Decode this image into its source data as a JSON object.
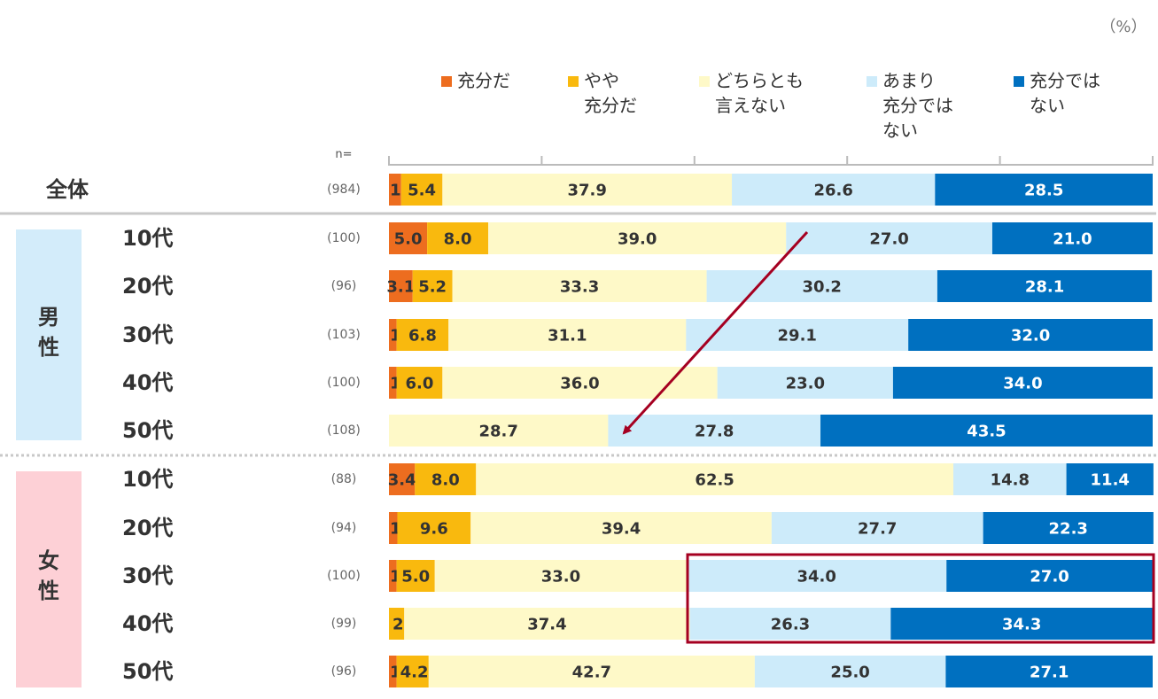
{
  "unit_label": "（%）",
  "n_label": "n=",
  "colors": {
    "jubun": "#ED6D1F",
    "yaya": "#F9B90E",
    "dochira": "#FEF9C8",
    "amari": "#CDEBFA",
    "jubun_nai": "#0070C0",
    "male_band": "#D3ECFA",
    "female_band": "#FDD0D6",
    "highlight": "#A50021"
  },
  "groups": {
    "male": "男性",
    "female": "女性"
  },
  "chart_data": {
    "type": "bar",
    "orientation": "horizontal",
    "stacked": true,
    "xlim": [
      0,
      100
    ],
    "legend": [
      {
        "key": "jubun",
        "label": [
          "充分だ"
        ]
      },
      {
        "key": "yaya",
        "label": [
          "やや",
          "充分だ"
        ]
      },
      {
        "key": "dochira",
        "label": [
          "どちらとも",
          "言えない"
        ]
      },
      {
        "key": "amari",
        "label": [
          "あまり",
          "充分では",
          "ない"
        ]
      },
      {
        "key": "jubun_nai",
        "label": [
          "充分では",
          "ない"
        ]
      }
    ],
    "rows": [
      {
        "label": "全体",
        "group": "all",
        "n": "(984)",
        "values": [
          1.6,
          5.4,
          37.9,
          26.6,
          28.5
        ]
      },
      {
        "label": "10代",
        "group": "male",
        "n": "(100)",
        "values": [
          5.0,
          8.0,
          39.0,
          27.0,
          21.0
        ]
      },
      {
        "label": "20代",
        "group": "male",
        "n": "(96)",
        "values": [
          3.1,
          5.2,
          33.3,
          30.2,
          28.1
        ]
      },
      {
        "label": "30代",
        "group": "male",
        "n": "(103)",
        "values": [
          1.0,
          6.8,
          31.1,
          29.1,
          32.0
        ]
      },
      {
        "label": "40代",
        "group": "male",
        "n": "(100)",
        "values": [
          1.0,
          6.0,
          36.0,
          23.0,
          34.0
        ]
      },
      {
        "label": "50代",
        "group": "male",
        "n": "(108)",
        "values": [
          0,
          0,
          28.7,
          27.8,
          43.5
        ]
      },
      {
        "label": "10代",
        "group": "female",
        "n": "(88)",
        "values": [
          3.4,
          8.0,
          62.5,
          14.8,
          11.4
        ]
      },
      {
        "label": "20代",
        "group": "female",
        "n": "(94)",
        "values": [
          1.1,
          9.6,
          39.4,
          27.7,
          22.3
        ]
      },
      {
        "label": "30代",
        "group": "female",
        "n": "(100)",
        "values": [
          1.0,
          5.0,
          33.0,
          34.0,
          27.0
        ]
      },
      {
        "label": "40代",
        "group": "female",
        "n": "(99)",
        "values": [
          0,
          2.0,
          37.4,
          26.3,
          34.3
        ]
      },
      {
        "label": "50代",
        "group": "female",
        "n": "(96)",
        "values": [
          1.0,
          4.2,
          42.7,
          25.0,
          27.1
        ]
      }
    ]
  }
}
